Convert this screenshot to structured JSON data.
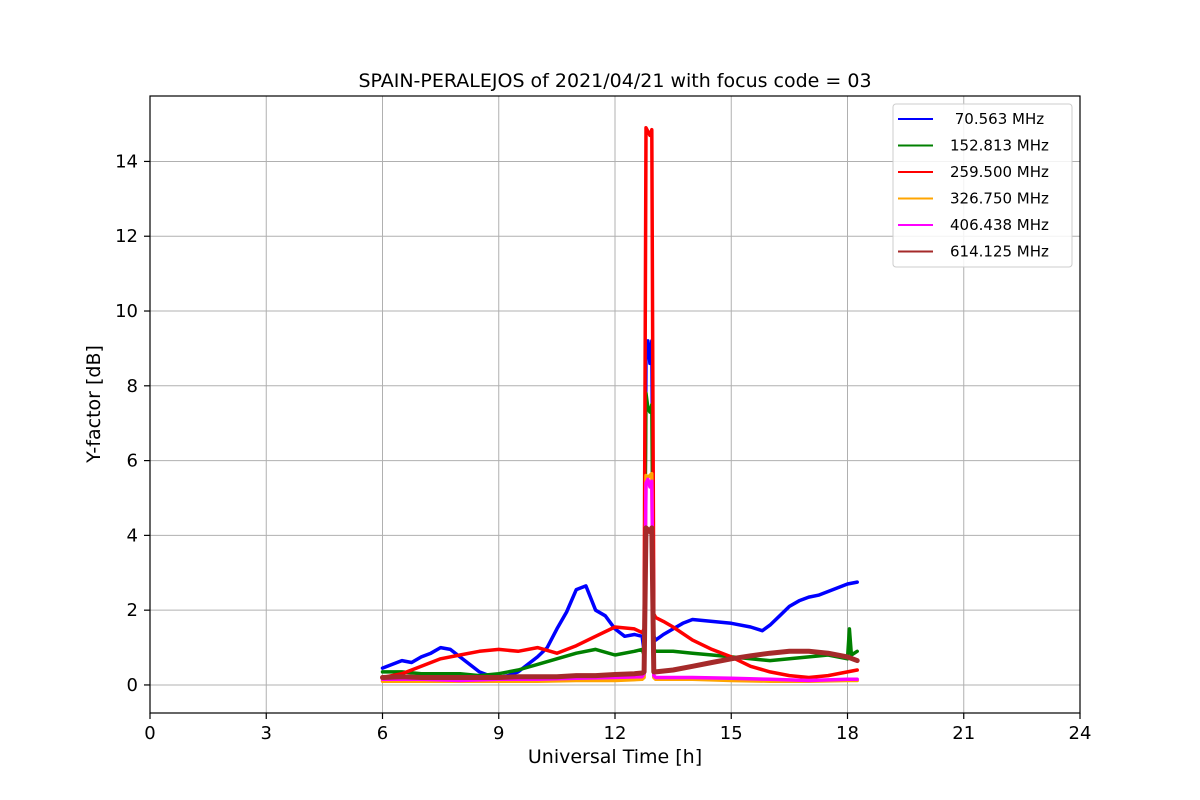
{
  "chart_data": {
    "type": "line",
    "title": "SPAIN-PERALEJOS of 2021/04/21 with focus code = 03",
    "xlabel": "Universal Time [h]",
    "ylabel": "Y-factor [dB]",
    "xlim": [
      0,
      24
    ],
    "ylim": [
      -0.75,
      15.75
    ],
    "xticks": [
      0,
      3,
      6,
      9,
      12,
      15,
      18,
      21,
      24
    ],
    "xtick_labels": [
      "0",
      "3",
      "6",
      "9",
      "12",
      "15",
      "18",
      "21",
      "24"
    ],
    "yticks": [
      0,
      2,
      4,
      6,
      8,
      10,
      12,
      14
    ],
    "ytick_labels": [
      "0",
      "2",
      "4",
      "6",
      "8",
      "10",
      "12",
      "14"
    ],
    "grid": true,
    "legend_position": "top-right",
    "series": [
      {
        "name": " 70.563 MHz",
        "color": "#0000ff",
        "x": [
          6.0,
          6.25,
          6.5,
          6.75,
          7.0,
          7.25,
          7.5,
          7.75,
          8.0,
          8.25,
          8.5,
          8.75,
          9.0,
          9.25,
          9.5,
          9.75,
          10.0,
          10.25,
          10.5,
          10.75,
          11.0,
          11.25,
          11.5,
          11.75,
          12.0,
          12.25,
          12.5,
          12.7,
          12.75,
          12.8,
          12.85,
          12.9,
          12.95,
          13.0,
          13.05,
          13.25,
          13.5,
          13.75,
          14.0,
          14.5,
          15.0,
          15.5,
          15.8,
          16.0,
          16.25,
          16.5,
          16.75,
          17.0,
          17.25,
          17.5,
          17.75,
          18.0,
          18.25
        ],
        "y": [
          0.45,
          0.55,
          0.65,
          0.6,
          0.75,
          0.85,
          1.0,
          0.95,
          0.75,
          0.55,
          0.35,
          0.25,
          0.2,
          0.25,
          0.35,
          0.55,
          0.75,
          1.0,
          1.5,
          1.95,
          2.55,
          2.65,
          2.0,
          1.85,
          1.5,
          1.3,
          1.35,
          1.3,
          0.9,
          8.8,
          9.2,
          8.6,
          9.2,
          1.3,
          1.2,
          1.35,
          1.5,
          1.65,
          1.75,
          1.7,
          1.65,
          1.55,
          1.45,
          1.6,
          1.85,
          2.1,
          2.25,
          2.35,
          2.4,
          2.5,
          2.6,
          2.7,
          2.75
        ]
      },
      {
        "name": "152.813 MHz",
        "color": "#008000",
        "x": [
          6.0,
          6.5,
          7.0,
          7.5,
          8.0,
          8.5,
          9.0,
          9.5,
          10.0,
          10.5,
          11.0,
          11.5,
          12.0,
          12.5,
          12.7,
          12.75,
          12.8,
          12.85,
          12.9,
          12.95,
          13.0,
          13.05,
          13.5,
          14.0,
          14.5,
          15.0,
          15.5,
          16.0,
          16.5,
          17.0,
          17.5,
          18.0,
          18.05,
          18.1,
          18.25
        ],
        "y": [
          0.35,
          0.35,
          0.3,
          0.3,
          0.3,
          0.25,
          0.3,
          0.4,
          0.55,
          0.7,
          0.85,
          0.95,
          0.8,
          0.9,
          0.95,
          0.8,
          7.8,
          7.4,
          7.3,
          7.5,
          0.95,
          0.9,
          0.9,
          0.85,
          0.8,
          0.75,
          0.7,
          0.65,
          0.7,
          0.75,
          0.8,
          0.7,
          1.5,
          0.8,
          0.9
        ]
      },
      {
        "name": "259.500 MHz",
        "color": "#ff0000",
        "x": [
          6.0,
          6.5,
          7.0,
          7.5,
          8.0,
          8.5,
          9.0,
          9.5,
          10.0,
          10.5,
          11.0,
          11.5,
          12.0,
          12.5,
          12.7,
          12.75,
          12.8,
          12.85,
          12.9,
          12.95,
          13.0,
          13.05,
          13.25,
          13.5,
          14.0,
          14.5,
          15.0,
          15.5,
          16.0,
          16.5,
          17.0,
          17.5,
          18.0,
          18.25
        ],
        "y": [
          0.2,
          0.3,
          0.5,
          0.7,
          0.8,
          0.9,
          0.95,
          0.9,
          1.0,
          0.85,
          1.05,
          1.3,
          1.55,
          1.5,
          1.4,
          1.5,
          14.9,
          14.8,
          14.7,
          14.85,
          1.9,
          1.8,
          1.7,
          1.55,
          1.2,
          0.95,
          0.75,
          0.5,
          0.35,
          0.25,
          0.2,
          0.25,
          0.35,
          0.4
        ]
      },
      {
        "name": "326.750 MHz",
        "color": "#ffa500",
        "x": [
          6.0,
          7.0,
          8.0,
          9.0,
          10.0,
          11.0,
          12.0,
          12.7,
          12.75,
          12.8,
          12.85,
          12.9,
          12.95,
          13.0,
          13.05,
          14.0,
          15.0,
          16.0,
          17.0,
          18.0,
          18.25
        ],
        "y": [
          0.1,
          0.1,
          0.1,
          0.1,
          0.1,
          0.12,
          0.12,
          0.15,
          0.2,
          5.6,
          5.55,
          5.6,
          5.65,
          0.2,
          0.15,
          0.15,
          0.12,
          0.1,
          0.1,
          0.12,
          0.12
        ]
      },
      {
        "name": "406.438 MHz",
        "color": "#ff00ff",
        "x": [
          6.0,
          7.0,
          8.0,
          9.0,
          10.0,
          11.0,
          12.0,
          12.7,
          12.75,
          12.8,
          12.85,
          12.9,
          12.95,
          13.0,
          13.05,
          14.0,
          15.0,
          16.0,
          17.0,
          18.0,
          18.25
        ],
        "y": [
          0.15,
          0.15,
          0.12,
          0.15,
          0.15,
          0.18,
          0.2,
          0.22,
          0.3,
          5.4,
          5.5,
          5.3,
          5.45,
          0.25,
          0.2,
          0.2,
          0.18,
          0.15,
          0.12,
          0.15,
          0.15
        ]
      },
      {
        "name": "614.125 MHz",
        "color": "#a52a2a",
        "x": [
          6.0,
          6.5,
          7.0,
          7.5,
          8.0,
          8.5,
          9.0,
          9.5,
          10.0,
          10.5,
          11.0,
          11.5,
          12.0,
          12.5,
          12.7,
          12.75,
          12.8,
          12.85,
          12.9,
          12.95,
          13.0,
          13.05,
          13.5,
          14.0,
          14.5,
          15.0,
          15.5,
          16.0,
          16.5,
          17.0,
          17.5,
          18.0,
          18.25
        ],
        "y": [
          0.2,
          0.22,
          0.2,
          0.2,
          0.2,
          0.2,
          0.2,
          0.22,
          0.22,
          0.22,
          0.25,
          0.25,
          0.28,
          0.3,
          0.32,
          0.35,
          4.2,
          4.15,
          4.1,
          4.2,
          0.35,
          0.35,
          0.4,
          0.5,
          0.6,
          0.7,
          0.78,
          0.85,
          0.9,
          0.9,
          0.85,
          0.75,
          0.65
        ]
      }
    ]
  }
}
